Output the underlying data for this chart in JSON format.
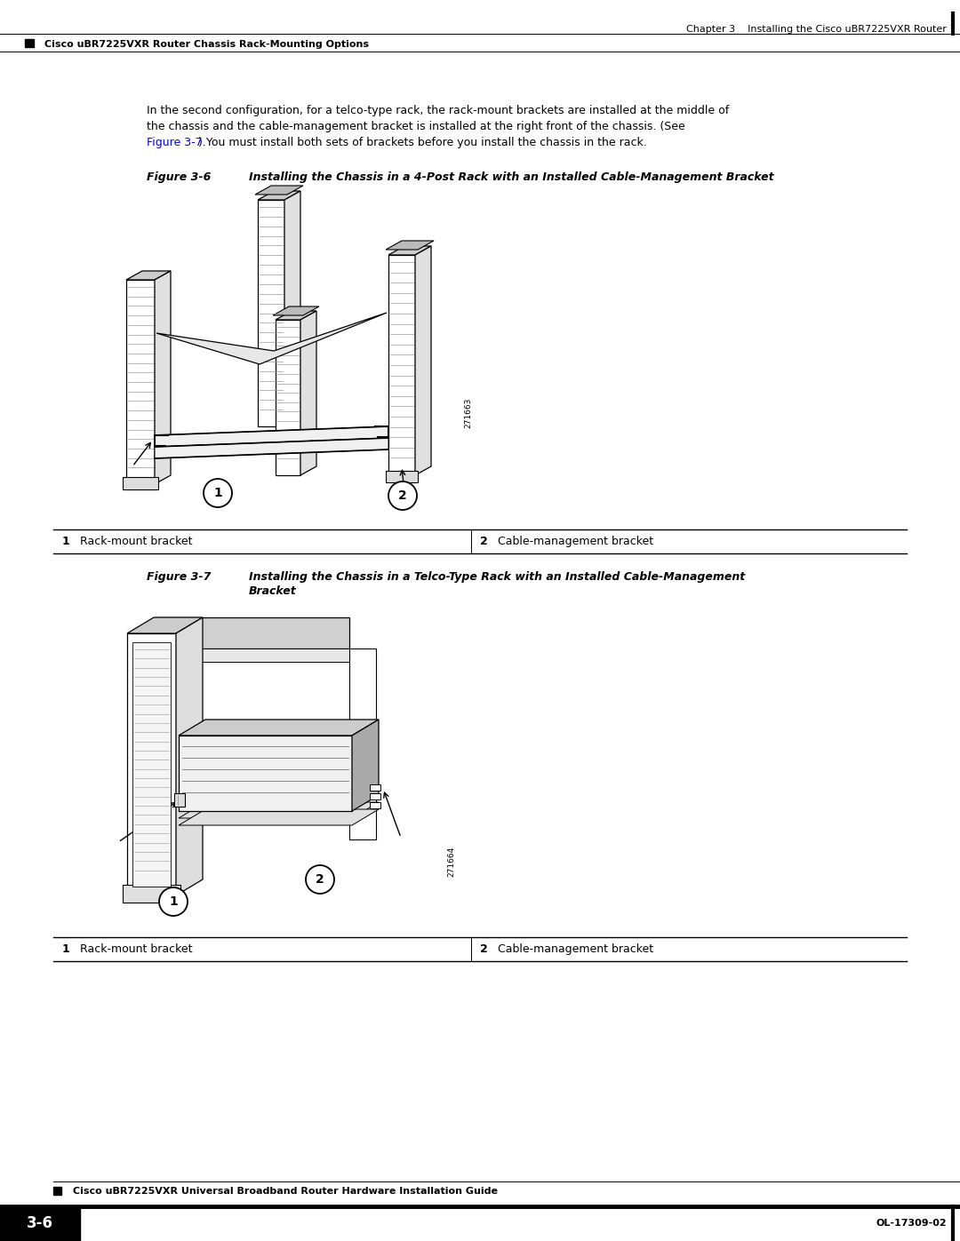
{
  "page_width": 10.8,
  "page_height": 13.97,
  "bg_color": "#ffffff",
  "header_right_text": "Chapter 3    Installing the Cisco uBR7225VXR Router",
  "header_left_text": "Cisco uBR7225VXR Router Chassis Rack-Mounting Options",
  "footer_left_box": "3-6",
  "footer_center_text": "Cisco uBR7225VXR Universal Broadband Router Hardware Installation Guide",
  "footer_right_text": "OL-17309-02",
  "body_lines": [
    "In the second configuration, for a telco-type rack, the rack-mount brackets are installed at the middle of",
    "the chassis and the cable-management bracket is installed at the right front of the chassis. (See",
    ") You must install both sets of brackets before you install the chassis in the rack."
  ],
  "body_link": "Figure 3-7.",
  "fig6_caption_bold": "Figure 3-6",
  "fig6_caption_text": "Installing the Chassis in a 4-Post Rack with an Installed Cable-Management Bracket",
  "fig7_caption_bold": "Figure 3-7",
  "fig7_caption_line1": "Installing the Chassis in a Telco-Type Rack with an Installed Cable-Management",
  "fig7_caption_line2": "Bracket",
  "table_label1": "Rack-mount bracket",
  "table_label2": "Cable-management bracket",
  "fig6_id_text": "271663",
  "fig7_id_text": "271664",
  "body_font_size": 9.0,
  "caption_font_size": 9.0,
  "header_font_size": 8.0,
  "footer_font_size": 8.0,
  "table_font_size": 9.0,
  "callout_font_size": 10
}
